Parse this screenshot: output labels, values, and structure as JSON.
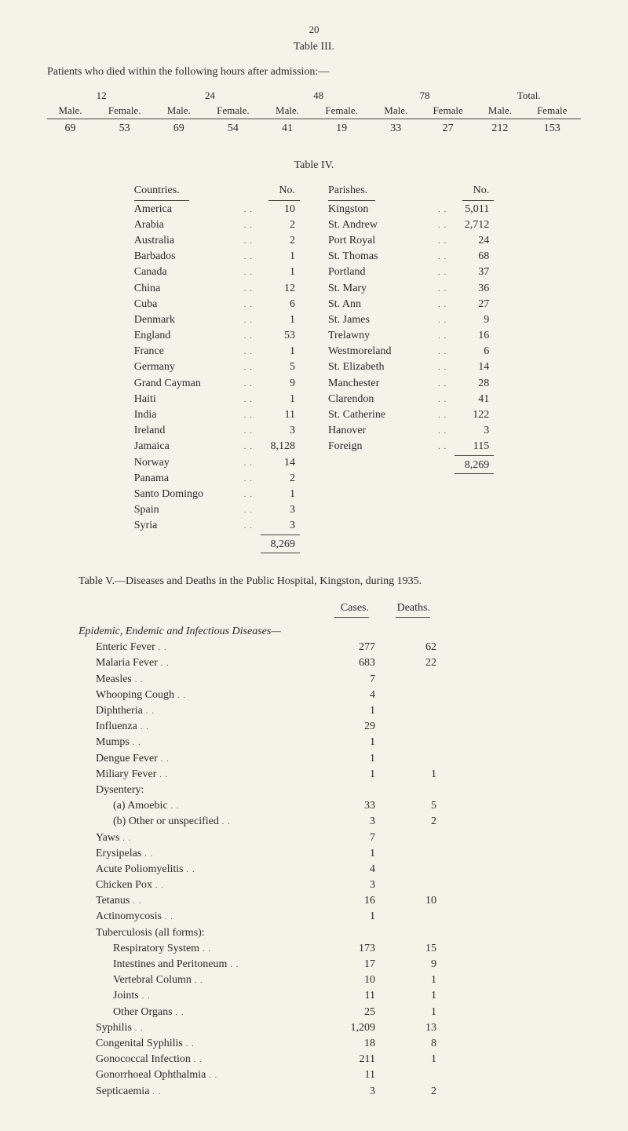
{
  "page_number": "20",
  "table3": {
    "label": "Table III.",
    "caption": "Patients who died within the following hours after admission:—",
    "groups": [
      "12",
      "24",
      "48",
      "78",
      "Total."
    ],
    "subheads": [
      "Male.",
      "Female.",
      "Male.",
      "Female.",
      "Male.",
      "Female.",
      "Male.",
      "Female",
      "Male.",
      "Female"
    ],
    "values": [
      "69",
      "53",
      "69",
      "54",
      "41",
      "19",
      "33",
      "27",
      "212",
      "153"
    ]
  },
  "table4": {
    "label": "Table IV.",
    "left_head": [
      "Countries.",
      "No."
    ],
    "right_head": [
      "Parishes.",
      "No."
    ],
    "countries": [
      [
        "America",
        "10"
      ],
      [
        "Arabia",
        "2"
      ],
      [
        "Australia",
        "2"
      ],
      [
        "Barbados",
        "1"
      ],
      [
        "Canada",
        "1"
      ],
      [
        "China",
        "12"
      ],
      [
        "Cuba",
        "6"
      ],
      [
        "Denmark",
        "1"
      ],
      [
        "England",
        "53"
      ],
      [
        "France",
        "1"
      ],
      [
        "Germany",
        "5"
      ],
      [
        "Grand Cayman",
        "9"
      ],
      [
        "Haiti",
        "1"
      ],
      [
        "India",
        "11"
      ],
      [
        "Ireland",
        "3"
      ],
      [
        "Jamaica",
        "8,128"
      ],
      [
        "Norway",
        "14"
      ],
      [
        "Panama",
        "2"
      ],
      [
        "Santo Domingo",
        "1"
      ],
      [
        "Spain",
        "3"
      ],
      [
        "Syria",
        "3"
      ]
    ],
    "countries_total": "8,269",
    "parishes": [
      [
        "Kingston",
        "5,011"
      ],
      [
        "St. Andrew",
        "2,712"
      ],
      [
        "Port Royal",
        "24"
      ],
      [
        "St. Thomas",
        "68"
      ],
      [
        "Portland",
        "37"
      ],
      [
        "St. Mary",
        "36"
      ],
      [
        "St. Ann",
        "27"
      ],
      [
        "St. James",
        "9"
      ],
      [
        "Trelawny",
        "16"
      ],
      [
        "Westmoreland",
        "6"
      ],
      [
        "St. Elizabeth",
        "14"
      ],
      [
        "Manchester",
        "28"
      ],
      [
        "Clarendon",
        "41"
      ],
      [
        "St. Catherine",
        "122"
      ],
      [
        "Hanover",
        "3"
      ],
      [
        "Foreign",
        "115"
      ]
    ],
    "parishes_total": "8,269"
  },
  "table5": {
    "caption": "Table V.—Diseases and Deaths in the Public Hospital, Kingston, during 1935.",
    "col_heads": [
      "Cases.",
      "Deaths."
    ],
    "section": "Epidemic, Endemic and Infectious Diseases—",
    "rows": [
      {
        "name": "Enteric Fever",
        "ind": 1,
        "cases": "277",
        "deaths": "62"
      },
      {
        "name": "Malaria Fever",
        "ind": 1,
        "cases": "683",
        "deaths": "22"
      },
      {
        "name": "Measles",
        "ind": 1,
        "cases": "7",
        "deaths": ""
      },
      {
        "name": "Whooping Cough",
        "ind": 1,
        "cases": "4",
        "deaths": ""
      },
      {
        "name": "Diphtheria",
        "ind": 1,
        "cases": "1",
        "deaths": ""
      },
      {
        "name": "Influenza",
        "ind": 1,
        "cases": "29",
        "deaths": ""
      },
      {
        "name": "Mumps",
        "ind": 1,
        "cases": "1",
        "deaths": ""
      },
      {
        "name": "Dengue Fever",
        "ind": 1,
        "cases": "1",
        "deaths": ""
      },
      {
        "name": "Miliary Fever",
        "ind": 1,
        "cases": "1",
        "deaths": "1"
      },
      {
        "name": "Dysentery:",
        "ind": 1,
        "cases": "",
        "deaths": ""
      },
      {
        "name": "(a) Amoebic",
        "ind": 2,
        "cases": "33",
        "deaths": "5"
      },
      {
        "name": "(b) Other or unspecified",
        "ind": 2,
        "cases": "3",
        "deaths": "2"
      },
      {
        "name": "Yaws",
        "ind": 1,
        "cases": "7",
        "deaths": ""
      },
      {
        "name": "Erysipelas",
        "ind": 1,
        "cases": "1",
        "deaths": ""
      },
      {
        "name": "Acute Poliomyelitis",
        "ind": 1,
        "cases": "4",
        "deaths": ""
      },
      {
        "name": "Chicken Pox",
        "ind": 1,
        "cases": "3",
        "deaths": ""
      },
      {
        "name": "Tetanus",
        "ind": 1,
        "cases": "16",
        "deaths": "10"
      },
      {
        "name": "Actinomycosis",
        "ind": 1,
        "cases": "1",
        "deaths": ""
      },
      {
        "name": "Tuberculosis (all forms):",
        "ind": 1,
        "cases": "",
        "deaths": ""
      },
      {
        "name": "Respiratory System",
        "ind": 2,
        "cases": "173",
        "deaths": "15"
      },
      {
        "name": "Intestines and Peritoneum",
        "ind": 2,
        "cases": "17",
        "deaths": "9"
      },
      {
        "name": "Vertebral Column",
        "ind": 2,
        "cases": "10",
        "deaths": "1"
      },
      {
        "name": "Joints",
        "ind": 2,
        "cases": "11",
        "deaths": "1"
      },
      {
        "name": "Other Organs",
        "ind": 2,
        "cases": "25",
        "deaths": "1"
      },
      {
        "name": "Syphilis",
        "ind": 1,
        "cases": "1,209",
        "deaths": "13"
      },
      {
        "name": "Congenital Syphilis",
        "ind": 1,
        "cases": "18",
        "deaths": "8"
      },
      {
        "name": "Gonococcal Infection",
        "ind": 1,
        "cases": "211",
        "deaths": "1"
      },
      {
        "name": "Gonorrhoeal Ophthalmia",
        "ind": 1,
        "cases": "11",
        "deaths": ""
      },
      {
        "name": "Septicaemia",
        "ind": 1,
        "cases": "3",
        "deaths": "2"
      }
    ]
  }
}
